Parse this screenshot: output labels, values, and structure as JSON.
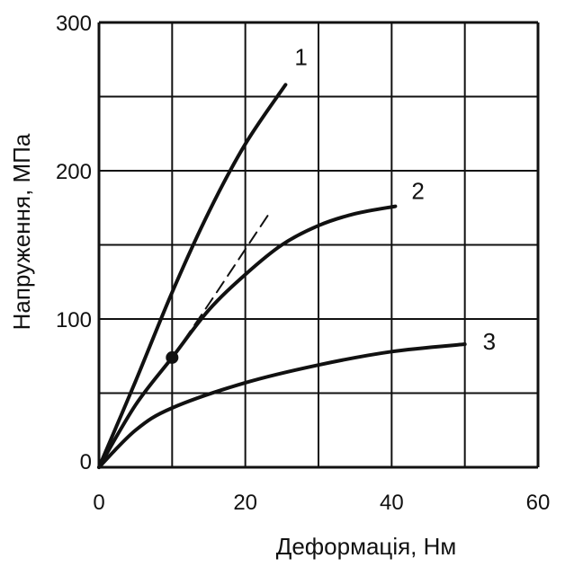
{
  "chart_data": {
    "type": "line",
    "title": "",
    "xlabel": "Деформація, Нм",
    "ylabel": "Напруження, МПа",
    "xlim": [
      0,
      60
    ],
    "ylim": [
      0,
      300
    ],
    "x_ticks": [
      "0",
      "20",
      "40",
      "60"
    ],
    "y_ticks": [
      "0",
      "100",
      "200",
      "300"
    ],
    "grid": true,
    "legend": "none",
    "series": [
      {
        "name": "1",
        "style": "solid",
        "x": [
          0,
          5,
          10,
          15,
          20,
          25.5
        ],
        "y": [
          0,
          58,
          118,
          172,
          218,
          258
        ]
      },
      {
        "name": "2",
        "style": "solid",
        "x": [
          0,
          5,
          10,
          15,
          20,
          25,
          30,
          35,
          40.5
        ],
        "y": [
          0,
          42,
          74,
          106,
          130,
          150,
          163,
          171,
          176
        ]
      },
      {
        "name": "3",
        "style": "solid",
        "x": [
          0,
          5,
          10,
          20,
          30,
          40,
          50
        ],
        "y": [
          0,
          25,
          40,
          57,
          69,
          78,
          83
        ]
      },
      {
        "name": "",
        "style": "dashed",
        "x": [
          10,
          15,
          20,
          23.5
        ],
        "y": [
          74,
          110,
          147,
          173
        ]
      }
    ],
    "markers": [
      {
        "x": 10,
        "y": 74
      }
    ]
  }
}
